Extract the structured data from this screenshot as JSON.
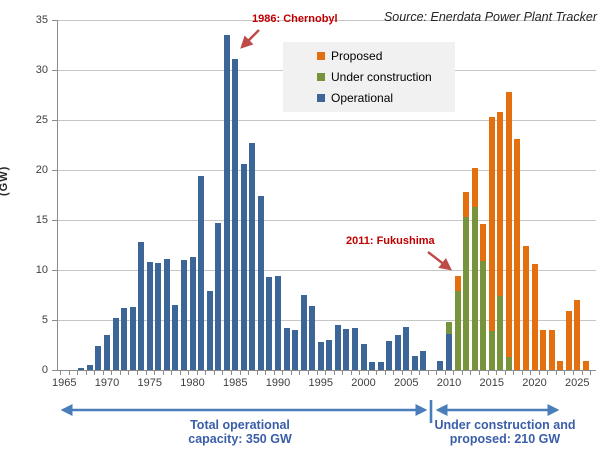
{
  "source_note": "Source: Enerdata Power Plant Tracker",
  "y_axis": {
    "title": "(GW)",
    "ticks": [
      0,
      5,
      10,
      15,
      20,
      25,
      30,
      35
    ],
    "max": 35
  },
  "x_axis": {
    "tick_labels": [
      "1965",
      "1970",
      "1975",
      "1980",
      "1985",
      "1990",
      "1995",
      "2000",
      "2005",
      "2010",
      "2015",
      "2020",
      "2025"
    ]
  },
  "legend": {
    "items": [
      {
        "label": "Proposed",
        "color": "#e36f0e"
      },
      {
        "label": "Under construction",
        "color": "#77933c"
      },
      {
        "label": "Operational",
        "color": "#3c6598"
      }
    ]
  },
  "annotations": {
    "chernobyl": "1986: Chernobyl",
    "fukushima": "2011: Fukushima",
    "left_span_line1": "Total operational",
    "left_span_line2": "capacity: 350 GW",
    "right_span_line1": "Under construction and",
    "right_span_line2": "proposed: 210 GW",
    "red_color": "#c00000",
    "blue_text_color": "#3a5ea8",
    "blue_arrow_color": "#4a7ebb"
  },
  "chart_data": {
    "type": "bar",
    "stacked": true,
    "title": "",
    "xlabel": "",
    "ylabel": "(GW)",
    "ylim": [
      0,
      35
    ],
    "grid": true,
    "legend_position": "top-center",
    "x": [
      1965,
      1966,
      1967,
      1968,
      1969,
      1970,
      1971,
      1972,
      1973,
      1974,
      1975,
      1976,
      1977,
      1978,
      1979,
      1980,
      1981,
      1982,
      1983,
      1984,
      1985,
      1986,
      1987,
      1988,
      1989,
      1990,
      1991,
      1992,
      1993,
      1994,
      1995,
      1996,
      1997,
      1998,
      1999,
      2000,
      2001,
      2002,
      2003,
      2004,
      2005,
      2006,
      2007,
      2008,
      2009,
      2010,
      2011,
      2012,
      2013,
      2014,
      2015,
      2016,
      2017,
      2018,
      2019,
      2020,
      2021,
      2022,
      2023,
      2024,
      2025,
      2026
    ],
    "series": [
      {
        "name": "Operational",
        "color": "#3c6598",
        "values": [
          0,
          0,
          0.2,
          0.5,
          2.4,
          3.5,
          5.2,
          6.2,
          6.3,
          12.8,
          10.8,
          10.7,
          11.1,
          6.5,
          11.0,
          11.3,
          19.4,
          7.9,
          14.7,
          33.5,
          31.1,
          20.6,
          22.7,
          17.4,
          9.3,
          9.4,
          4.2,
          4.0,
          7.5,
          6.4,
          2.8,
          3.0,
          4.5,
          4.1,
          4.2,
          2.6,
          0.8,
          0.8,
          2.9,
          3.5,
          4.3,
          1.4,
          1.9,
          0,
          0.9,
          3.6,
          0,
          0,
          0,
          0,
          0,
          0,
          0,
          0,
          0,
          0,
          0,
          0,
          0,
          0,
          0,
          0
        ]
      },
      {
        "name": "Under construction",
        "color": "#77933c",
        "values": [
          0,
          0,
          0,
          0,
          0,
          0,
          0,
          0,
          0,
          0,
          0,
          0,
          0,
          0,
          0,
          0,
          0,
          0,
          0,
          0,
          0,
          0,
          0,
          0,
          0,
          0,
          0,
          0,
          0,
          0,
          0,
          0,
          0,
          0,
          0,
          0,
          0,
          0,
          0,
          0,
          0,
          0,
          0,
          0,
          0,
          1.2,
          7.9,
          15.3,
          16.3,
          10.9,
          3.9,
          7.4,
          1.3,
          0,
          0,
          0,
          0,
          0,
          0,
          0,
          0,
          0
        ]
      },
      {
        "name": "Proposed",
        "color": "#e36f0e",
        "values": [
          0,
          0,
          0,
          0,
          0,
          0,
          0,
          0,
          0,
          0,
          0,
          0,
          0,
          0,
          0,
          0,
          0,
          0,
          0,
          0,
          0,
          0,
          0,
          0,
          0,
          0,
          0,
          0,
          0,
          0,
          0,
          0,
          0,
          0,
          0,
          0,
          0,
          0,
          0,
          0,
          0,
          0,
          0,
          0,
          0,
          0,
          1.5,
          2.5,
          3.9,
          3.7,
          21.4,
          18.4,
          26.5,
          23.1,
          12.4,
          10.6,
          4.0,
          4.0,
          0.9,
          5.9,
          7.0,
          0.9
        ]
      }
    ]
  }
}
